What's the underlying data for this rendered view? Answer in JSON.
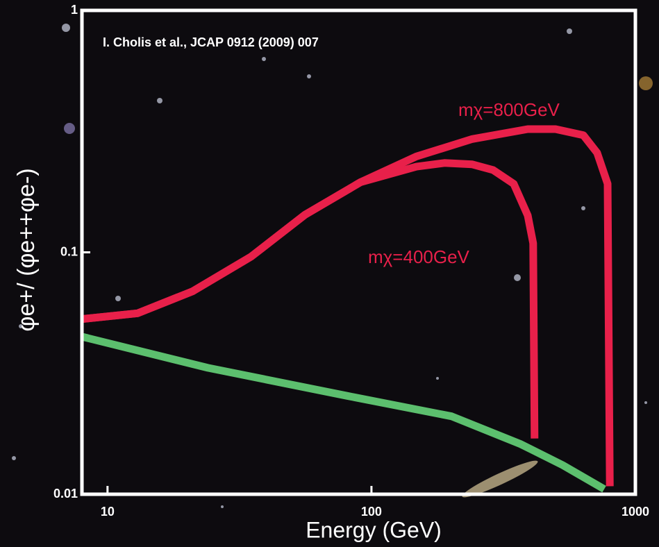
{
  "chart_data": {
    "type": "line",
    "annotation": "I. Cholis et al., JCAP 0912 (2009) 007",
    "x_label": "Energy (GeV)",
    "y_label": "φe+/ (φe++φe-)",
    "xscale": "log",
    "yscale": "log",
    "xlim": [
      8,
      1000
    ],
    "ylim": [
      0.01,
      1
    ],
    "xticks": [
      10,
      100,
      1000
    ],
    "yticks": [
      0.01,
      0.1,
      1
    ],
    "series": [
      {
        "name": "mχ=800GeV",
        "color": "#e8204a",
        "x": [
          8,
          13,
          21,
          35,
          56,
          91,
          148,
          241,
          391,
          498,
          635,
          716,
          785,
          800
        ],
        "values": [
          0.053,
          0.056,
          0.069,
          0.096,
          0.143,
          0.195,
          0.249,
          0.294,
          0.323,
          0.323,
          0.305,
          0.258,
          0.192,
          0.0108
        ]
      },
      {
        "name": "mχ=400GeV",
        "color": "#e8204a",
        "x": [
          8,
          13,
          21,
          35,
          56,
          91,
          148,
          189,
          241,
          289,
          346,
          391,
          410,
          415
        ],
        "values": [
          0.053,
          0.056,
          0.069,
          0.096,
          0.143,
          0.195,
          0.226,
          0.234,
          0.231,
          0.219,
          0.192,
          0.142,
          0.109,
          0.017
        ]
      },
      {
        "color": "#5cbf6e",
        "x": [
          8,
          24,
          81,
          201,
          368,
          530,
          762
        ],
        "values": [
          0.0448,
          0.0333,
          0.0255,
          0.021,
          0.0161,
          0.0132,
          0.0105
        ]
      }
    ]
  }
}
